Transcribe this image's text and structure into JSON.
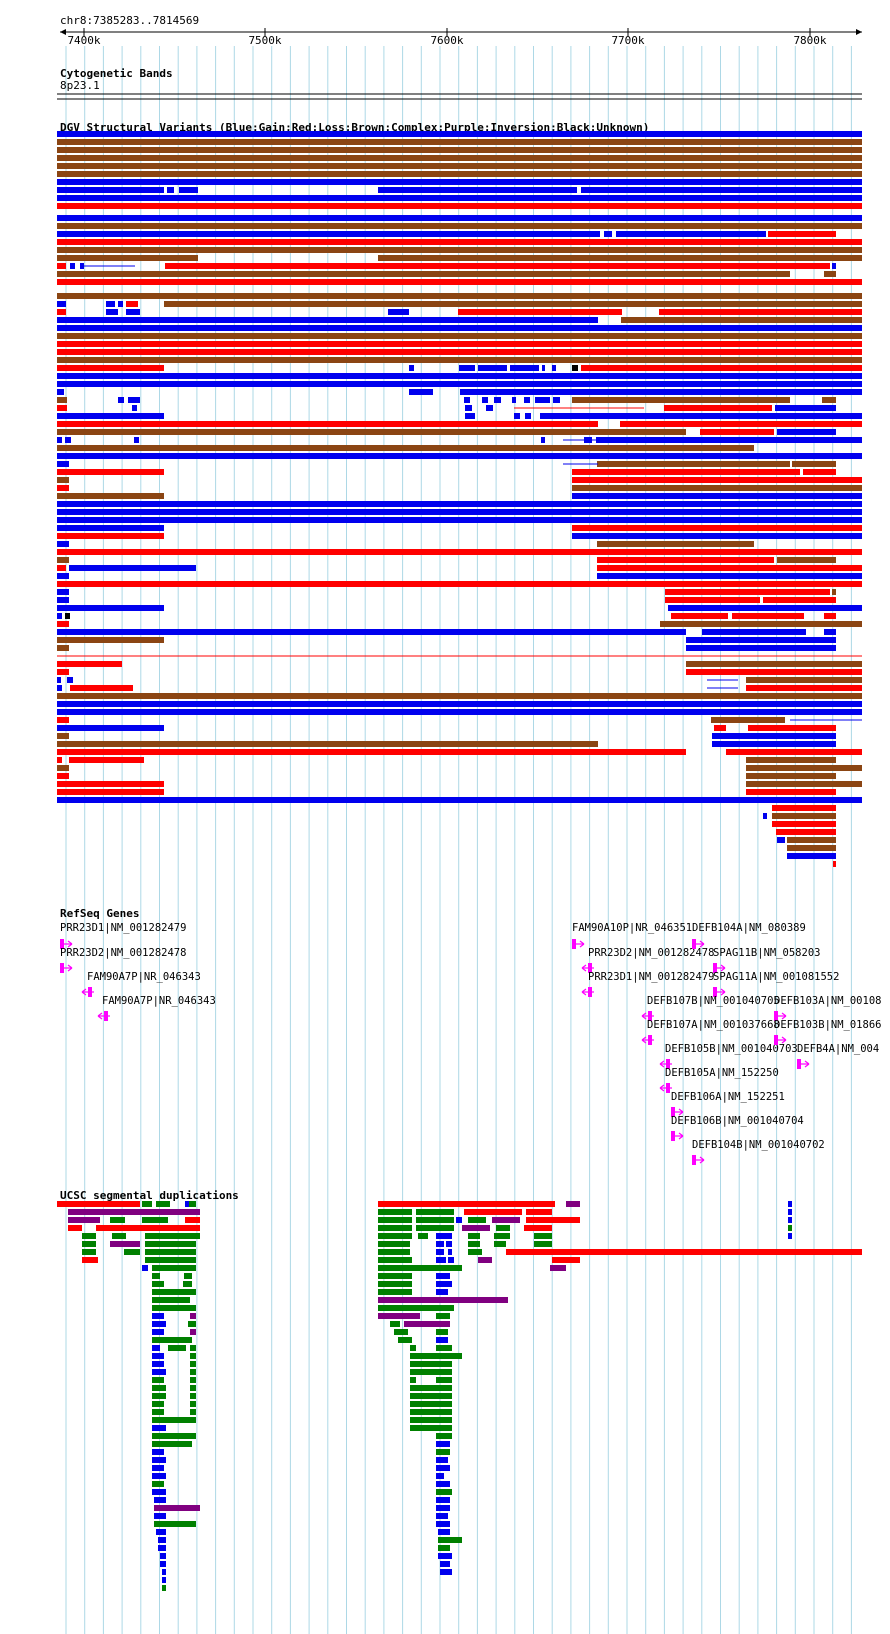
{
  "header": {
    "region": "chr8:7385283..7814569"
  },
  "ruler": {
    "ticks": [
      "7400k",
      "7500k",
      "7600k",
      "7700k",
      "7800k"
    ]
  },
  "tracks": {
    "cytogenetic": {
      "title": "Cytogenetic Bands",
      "band": "8p23.1"
    },
    "dgv": {
      "title": "DGV Structural Variants (Blue:Gain;Red:Loss;Brown:Complex;Purple:Inversion;Black:Unknown)"
    },
    "refseq": {
      "title": "RefSeq Genes",
      "genes": [
        {
          "label": "PRR23D1|NM_001282479",
          "strand": "+"
        },
        {
          "label": "PRR23D2|NM_001282478",
          "strand": "+"
        },
        {
          "label": "FAM90A7P|NR_046343",
          "strand": "-"
        },
        {
          "label": "FAM90A7P|NR_046343",
          "strand": "-"
        },
        {
          "label": "FAM90A10P|NR_046351",
          "strand": "+"
        },
        {
          "label": "PRR23D2|NM_001282478",
          "strand": "-"
        },
        {
          "label": "PRR23D1|NM_001282479",
          "strand": "-"
        },
        {
          "label": "DEFB104A|NM_080389",
          "strand": "+"
        },
        {
          "label": "SPAG11B|NM_058203",
          "strand": "+"
        },
        {
          "label": "SPAG11A|NM_001081552",
          "strand": "+"
        },
        {
          "label": "DEFB107B|NM_001040705",
          "strand": "-"
        },
        {
          "label": "DEFB107A|NM_001037668",
          "strand": "-"
        },
        {
          "label": "DEFB105B|NM_001040703",
          "strand": "-"
        },
        {
          "label": "DEFB105A|NM_152250",
          "strand": "-"
        },
        {
          "label": "DEFB106A|NM_152251",
          "strand": "+"
        },
        {
          "label": "DEFB106B|NM_001040704",
          "strand": "+"
        },
        {
          "label": "DEFB104B|NM_001040702",
          "strand": "+"
        },
        {
          "label": "DEFB103A|NM_00108",
          "strand": "+"
        },
        {
          "label": "DEFB103B|NM_01866",
          "strand": "+"
        },
        {
          "label": "DEFB4A|NM_004",
          "strand": "+"
        }
      ]
    },
    "segdups": {
      "title": "UCSC segmental duplications"
    }
  },
  "colors": {
    "gain": "#0000ee",
    "loss": "#ff0000",
    "complex": "#8b4513",
    "inversion": "#800080",
    "unknown": "#000000",
    "gene": "#ff00ff",
    "segdup_green": "#008000",
    "segdup_blue": "#0000ee",
    "segdup_red": "#ff0000",
    "segdup_purple": "#800080",
    "grid": "#add8e6"
  }
}
